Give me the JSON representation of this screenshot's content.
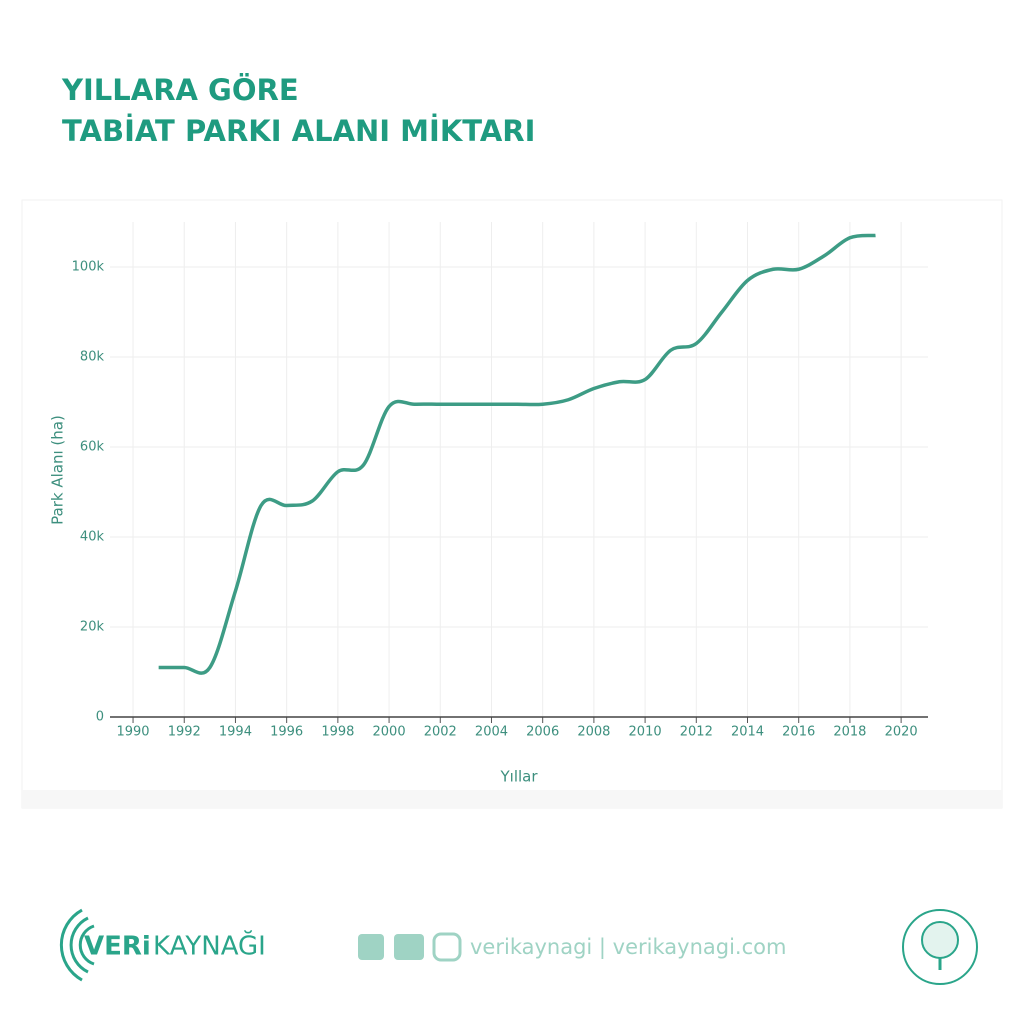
{
  "chart_data": {
    "type": "line",
    "title": [
      "YILLARA GÖRE",
      "TABİAT PARKI ALANI MİKTARI"
    ],
    "xlabel": "Yıllar",
    "ylabel": "Park Alanı (ha)",
    "series": [
      {
        "name": "Park Alanı (ha)",
        "color": "#3d9c85",
        "x": [
          1991,
          1992,
          1993,
          1994,
          1995,
          1996,
          1997,
          1998,
          1999,
          2000,
          2001,
          2002,
          2003,
          2004,
          2005,
          2006,
          2007,
          2008,
          2009,
          2010,
          2011,
          2012,
          2013,
          2014,
          2015,
          2016,
          2017,
          2018,
          2019
        ],
        "values": [
          11000,
          11000,
          11000,
          28000,
          47000,
          47000,
          48000,
          54500,
          56000,
          69000,
          69500,
          69500,
          69500,
          69500,
          69500,
          69500,
          70500,
          73000,
          74500,
          75000,
          81500,
          83000,
          90000,
          97000,
          99500,
          99500,
          102500,
          106500,
          107000
        ]
      }
    ],
    "xlim": [
      1989.1,
      2021.05
    ],
    "ylim": [
      0,
      110000
    ],
    "xticks": [
      1990,
      1992,
      1994,
      1996,
      1998,
      2000,
      2002,
      2004,
      2006,
      2008,
      2010,
      2012,
      2014,
      2016,
      2018,
      2020
    ],
    "yticks": [
      0,
      {
        "value": 20000,
        "label": "20k"
      },
      {
        "value": 40000,
        "label": "40k"
      },
      {
        "value": 60000,
        "label": "60k"
      },
      {
        "value": 80000,
        "label": "80k"
      },
      {
        "value": 100000,
        "label": "100k"
      }
    ],
    "grid": true
  },
  "footer": {
    "brand_bold": "VERi",
    "brand_light": "KAYNAĞI",
    "social": "verikaynagi | verikaynagi.com"
  }
}
